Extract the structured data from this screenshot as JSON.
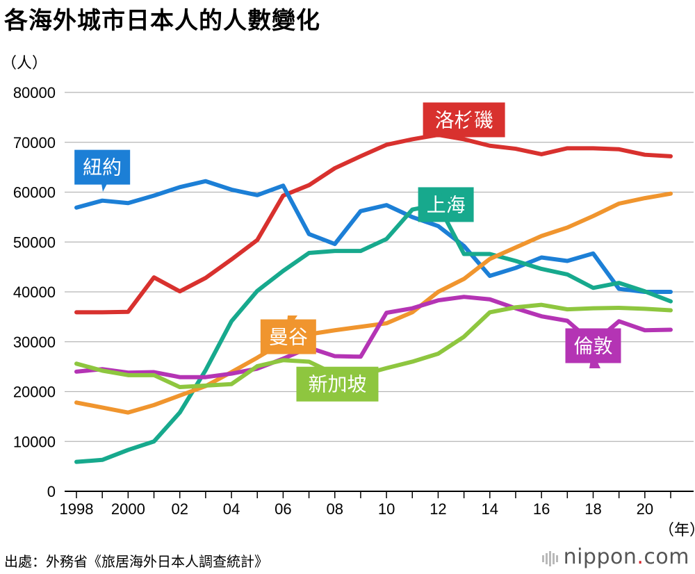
{
  "chart_data": {
    "type": "line",
    "title": "各海外城市日本人的人數變化",
    "ylabel": "（人）",
    "xlabel": "（年）",
    "ylim": [
      0,
      80000
    ],
    "yticks": [
      0,
      10000,
      20000,
      30000,
      40000,
      50000,
      60000,
      70000,
      80000
    ],
    "xlim": [
      1998,
      2021
    ],
    "xticks": [
      {
        "year": 1998,
        "label": "1998"
      },
      {
        "year": 2000,
        "label": "2000"
      },
      {
        "year": 2002,
        "label": "02"
      },
      {
        "year": 2004,
        "label": "04"
      },
      {
        "year": 2006,
        "label": "06"
      },
      {
        "year": 2008,
        "label": "08"
      },
      {
        "year": 2010,
        "label": "10"
      },
      {
        "year": 2012,
        "label": "12"
      },
      {
        "year": 2014,
        "label": "14"
      },
      {
        "year": 2016,
        "label": "16"
      },
      {
        "year": 2018,
        "label": "18"
      },
      {
        "year": 2020,
        "label": "20"
      }
    ],
    "x": [
      1998,
      1999,
      2000,
      2001,
      2002,
      2003,
      2004,
      2005,
      2006,
      2007,
      2008,
      2009,
      2010,
      2011,
      2012,
      2013,
      2014,
      2015,
      2016,
      2017,
      2018,
      2019,
      2020,
      2021
    ],
    "series": [
      {
        "name": "洛杉磯",
        "color": "#d8312e",
        "label_point": {
          "year": 2013,
          "value": 74500
        },
        "values": [
          35900,
          35900,
          36000,
          42900,
          40100,
          42800,
          46500,
          50400,
          59300,
          61400,
          64800,
          67200,
          69500,
          70600,
          71500,
          70600,
          69300,
          68700,
          67600,
          68800,
          68800,
          68600,
          67500,
          67200
        ]
      },
      {
        "name": "紐約",
        "color": "#1c7fd6",
        "label_point": {
          "year": 1999.0,
          "value": 65000
        },
        "values": [
          56900,
          58300,
          57800,
          59300,
          61000,
          62200,
          60500,
          59400,
          61300,
          51600,
          49600,
          56200,
          57400,
          55000,
          53200,
          49200,
          43200,
          44800,
          46900,
          46200,
          47700,
          40600,
          40000,
          40000
        ]
      },
      {
        "name": "上海",
        "color": "#17a98d",
        "label_point": {
          "year": 2012.3,
          "value": 57500
        },
        "values": [
          5900,
          6300,
          8300,
          10000,
          15800,
          24300,
          34100,
          40200,
          44200,
          47800,
          48200,
          48200,
          50600,
          56500,
          57500,
          47600,
          47600,
          46200,
          44600,
          43500,
          40800,
          41800,
          40100,
          38100
        ]
      },
      {
        "name": "曼谷",
        "color": "#f0952e",
        "label_point": {
          "year": 2006.2,
          "value": 31000
        },
        "values": [
          17800,
          16800,
          15800,
          17300,
          19200,
          21100,
          23900,
          26800,
          29900,
          31500,
          32300,
          33000,
          33700,
          35900,
          40000,
          42600,
          46600,
          48900,
          51200,
          52900,
          55200,
          57700,
          58800,
          59700
        ]
      },
      {
        "name": "倫敦",
        "color": "#b434b4",
        "label_point": {
          "year": 2018.0,
          "value": 29200
        },
        "values": [
          24000,
          24500,
          23800,
          23900,
          22900,
          22900,
          23600,
          24600,
          26600,
          28800,
          27100,
          27000,
          35800,
          36700,
          38300,
          39000,
          38500,
          36700,
          35100,
          34200,
          29700,
          34100,
          32300,
          32400
        ]
      },
      {
        "name": "新加坡",
        "color": "#8ec63f",
        "label_point": {
          "year": 2008.1,
          "value": 21500
        },
        "values": [
          25600,
          24200,
          23300,
          23300,
          20900,
          21200,
          21500,
          25100,
          26300,
          26000,
          23500,
          23300,
          24700,
          26000,
          27600,
          31000,
          35900,
          36900,
          37400,
          36500,
          36700,
          36800,
          36600,
          36300
        ]
      }
    ]
  },
  "source": "出處：外務省《旅居海外日本人調查統計》",
  "brand": {
    "name": "nippon",
    "dot": ".",
    "tld": "com"
  }
}
